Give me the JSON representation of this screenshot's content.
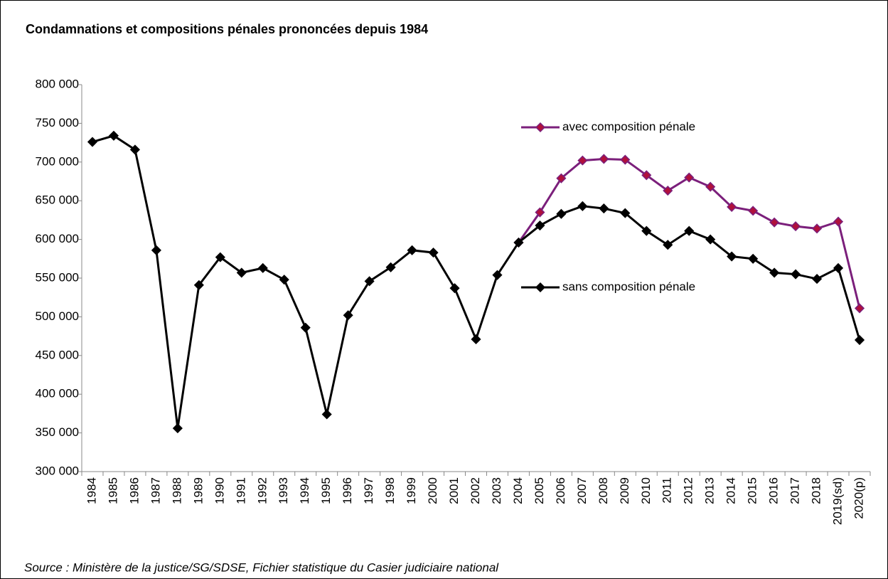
{
  "chart_data": {
    "type": "line",
    "title": "Condamnations et compositions pénales prononcées depuis 1984",
    "source": "Source : Ministère de la justice/SG/SDSE, Fichier statistique du Casier judiciaire national",
    "categories": [
      "1984",
      "1985",
      "1986",
      "1987",
      "1988",
      "1989",
      "1990",
      "1991",
      "1992",
      "1993",
      "1994",
      "1995",
      "1996",
      "1997",
      "1998",
      "1999",
      "2000",
      "2001",
      "2002",
      "2003",
      "2004",
      "2005",
      "2006",
      "2007",
      "2008",
      "2009",
      "2010",
      "2011",
      "2012",
      "2013",
      "2014",
      "2015",
      "2016",
      "2017",
      "2018",
      "2019(sd)",
      "2020(p)"
    ],
    "series": [
      {
        "name": "avec composition pénale",
        "color": "#7b1f7b",
        "marker_color": "#b0103c",
        "values": [
          null,
          null,
          null,
          null,
          null,
          null,
          null,
          null,
          null,
          null,
          null,
          null,
          null,
          null,
          null,
          null,
          null,
          null,
          null,
          null,
          596000,
          635000,
          679000,
          702000,
          704000,
          703000,
          683000,
          663000,
          680000,
          668000,
          642000,
          637000,
          622000,
          617000,
          614000,
          623000,
          511000
        ]
      },
      {
        "name": "sans composition pénale",
        "color": "#000000",
        "marker_color": "#000000",
        "values": [
          726000,
          734000,
          716000,
          586000,
          356000,
          541000,
          577000,
          557000,
          563000,
          548000,
          486000,
          374000,
          502000,
          546000,
          564000,
          586000,
          583000,
          537000,
          471000,
          554000,
          596000,
          618000,
          633000,
          643000,
          640000,
          634000,
          611000,
          593000,
          611000,
          600000,
          578000,
          575000,
          557000,
          555000,
          549000,
          563000,
          470000
        ]
      }
    ],
    "ylim": [
      300000,
      800000
    ],
    "yticks": [
      {
        "value": 300000,
        "label": "300 000"
      },
      {
        "value": 350000,
        "label": "350 000"
      },
      {
        "value": 400000,
        "label": "400 000"
      },
      {
        "value": 450000,
        "label": "450 000"
      },
      {
        "value": 500000,
        "label": "500 000"
      },
      {
        "value": 550000,
        "label": "550 000"
      },
      {
        "value": 600000,
        "label": "600 000"
      },
      {
        "value": 650000,
        "label": "650 000"
      },
      {
        "value": 700000,
        "label": "700 000"
      },
      {
        "value": 750000,
        "label": "750 000"
      },
      {
        "value": 800000,
        "label": "800 000"
      }
    ],
    "grid": false
  }
}
